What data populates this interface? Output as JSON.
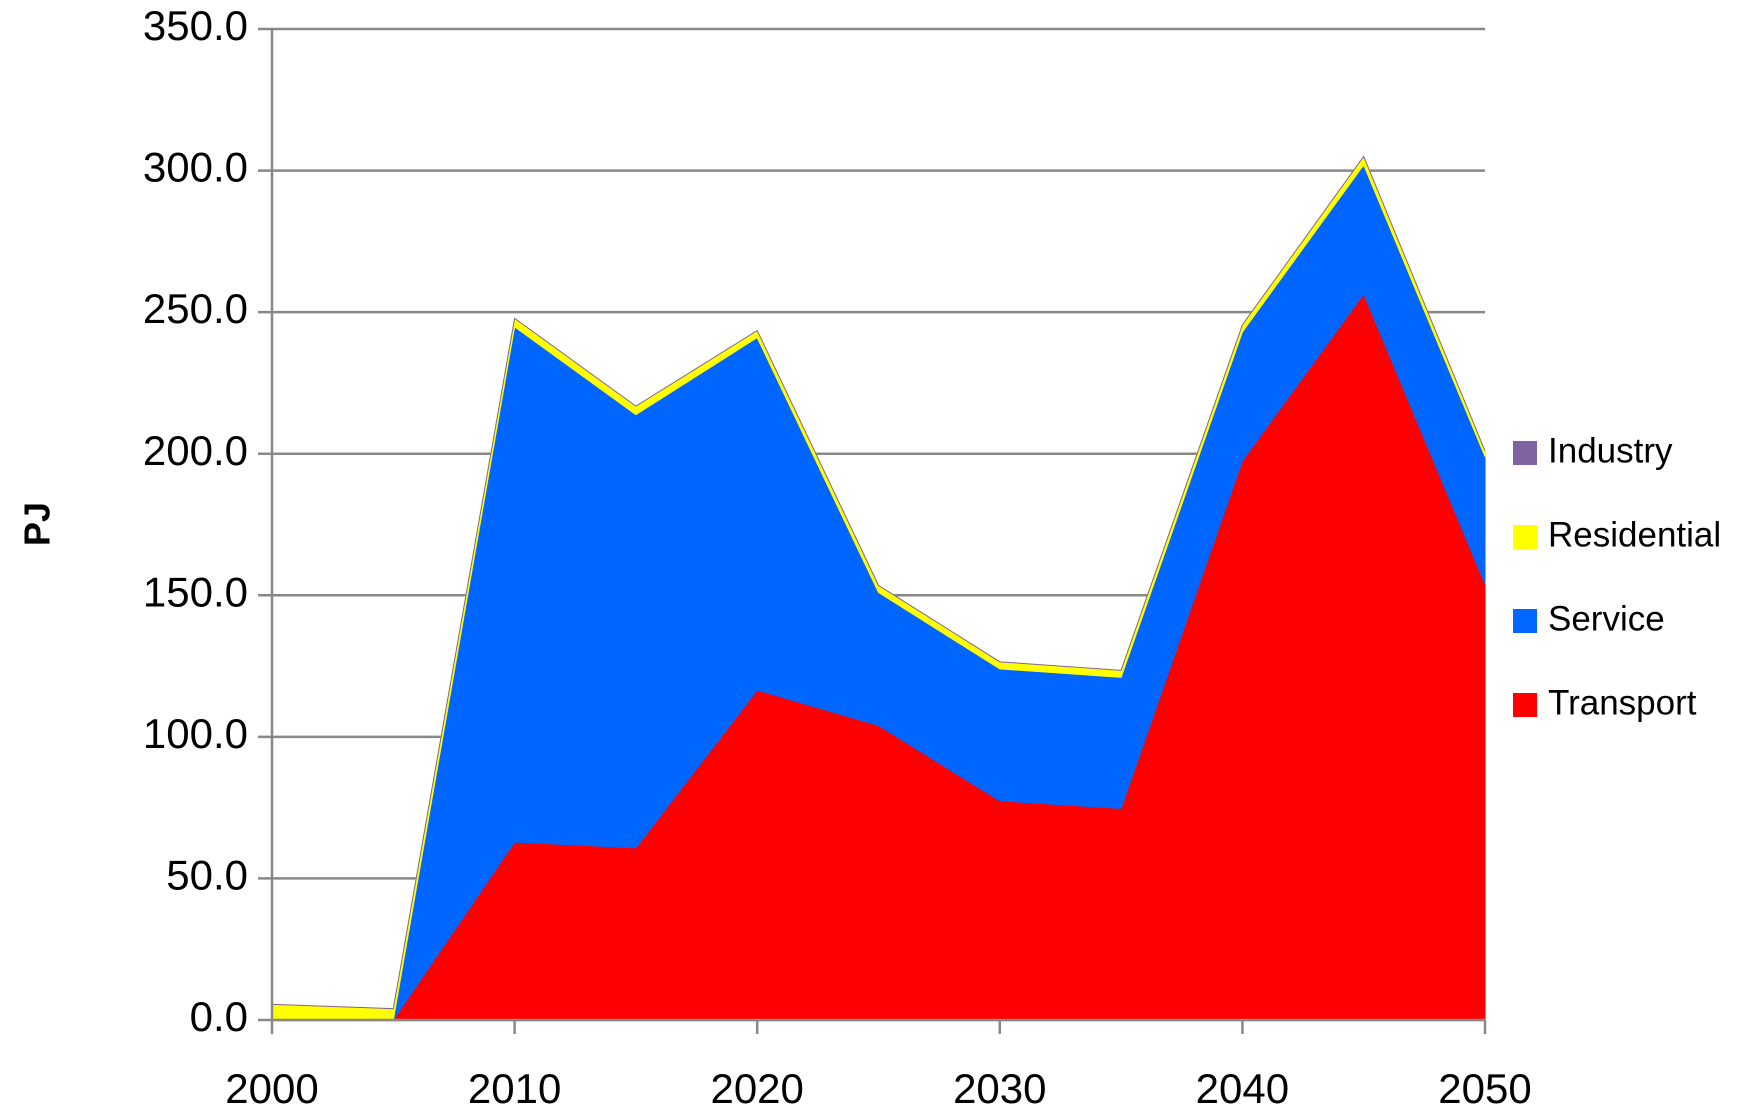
{
  "chart_data": {
    "type": "stacked_area",
    "y_label": "PJ",
    "x": [
      2000,
      2005,
      2010,
      2015,
      2020,
      2025,
      2030,
      2035,
      2040,
      2045,
      2050
    ],
    "series": [
      {
        "name": "Transport",
        "color": "#ff0000",
        "values": [
          0,
          0,
          62.8,
          60.8,
          116.5,
          104,
          77.4,
          74.7,
          197.5,
          256.4,
          154
        ]
      },
      {
        "name": "Service",
        "color": "#0066ff",
        "values": [
          0,
          0,
          182,
          153,
          124.5,
          47,
          46.6,
          46.3,
          45.5,
          45.6,
          45
        ]
      },
      {
        "name": "Residential",
        "color": "#ffff00",
        "values": [
          5.5,
          4,
          3,
          3,
          2.5,
          2.5,
          2.5,
          2.5,
          2.5,
          3,
          2
        ]
      },
      {
        "name": "Industry",
        "color": "#8064a2",
        "values": [
          0,
          0,
          0,
          0,
          0,
          0,
          0,
          0,
          0,
          0,
          0
        ]
      }
    ],
    "xlim": [
      2000,
      2050
    ],
    "xticks": [
      2000,
      2010,
      2020,
      2030,
      2040,
      2050
    ],
    "ylim": [
      0,
      350
    ],
    "yticks": [
      {
        "value": 0,
        "label": "0.0"
      },
      {
        "value": 50,
        "label": "50.0"
      },
      {
        "value": 100,
        "label": "100.0"
      },
      {
        "value": 150,
        "label": "150.0"
      },
      {
        "value": 200,
        "label": "200.0"
      },
      {
        "value": 250,
        "label": "250.0"
      },
      {
        "value": 300,
        "label": "300.0"
      },
      {
        "value": 350,
        "label": "350.0"
      }
    ],
    "grid": true,
    "legend": "right"
  }
}
